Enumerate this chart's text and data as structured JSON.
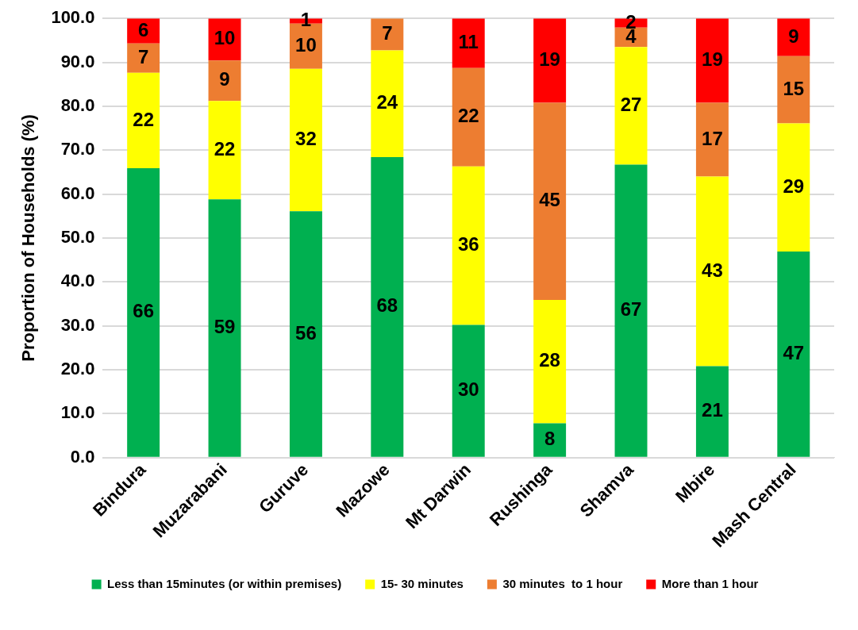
{
  "chart_data": {
    "type": "bar",
    "stacked": true,
    "ylabel": "Proportion of Households (%)",
    "categories": [
      "Bindura",
      "Muzarabani",
      "Guruve",
      "Mazowe",
      "Mt Darwin",
      "Rushinga",
      "Shamva",
      "Mbire",
      "Mash Central"
    ],
    "series": [
      {
        "name": "Less than 15minutes (or within premises)",
        "color": "#00b050",
        "values": [
          65.9,
          58.8,
          56.1,
          68.4,
          30.2,
          7.8,
          66.7,
          20.8,
          46.9
        ],
        "value_labels": [
          "66",
          "59",
          "56",
          "68",
          "30",
          "8",
          "67",
          "21",
          "47"
        ]
      },
      {
        "name": "15- 30 minutes",
        "color": "#ffff00",
        "values": [
          21.7,
          22.4,
          32.4,
          24.3,
          36.1,
          28.1,
          26.8,
          43.2,
          29.2
        ],
        "value_labels": [
          "22",
          "22",
          "32",
          "24",
          "36",
          "28",
          "27",
          "43",
          "29"
        ]
      },
      {
        "name": "30 minutes  to 1 hour",
        "color": "#ed7d31",
        "values": [
          6.7,
          9.2,
          10.3,
          7.3,
          22.4,
          44.9,
          4.4,
          16.8,
          15.3
        ],
        "value_labels": [
          "7",
          "9",
          "10",
          "7",
          "22",
          "45",
          "4",
          "17",
          "15"
        ]
      },
      {
        "name": "More than 1 hour",
        "color": "#ff0000",
        "values": [
          5.7,
          9.6,
          1.2,
          null,
          11.3,
          19.2,
          2.1,
          19.2,
          8.6
        ],
        "value_labels": [
          "6",
          "10",
          "1",
          null,
          "11",
          "19",
          "2",
          "19",
          "9"
        ]
      }
    ],
    "ylim": [
      0,
      100
    ],
    "yticks": [
      {
        "value": 0,
        "label": "0.0"
      },
      {
        "value": 10,
        "label": "10.0"
      },
      {
        "value": 20,
        "label": "20.0"
      },
      {
        "value": 30,
        "label": "30.0"
      },
      {
        "value": 40,
        "label": "40.0"
      },
      {
        "value": 50,
        "label": "50.0"
      },
      {
        "value": 60,
        "label": "60.0"
      },
      {
        "value": 70,
        "label": "70.0"
      },
      {
        "value": 80,
        "label": "80.0"
      },
      {
        "value": 90,
        "label": "90.0"
      },
      {
        "value": 100,
        "label": "100.0"
      }
    ],
    "grid": "y",
    "legend": "bottom"
  }
}
